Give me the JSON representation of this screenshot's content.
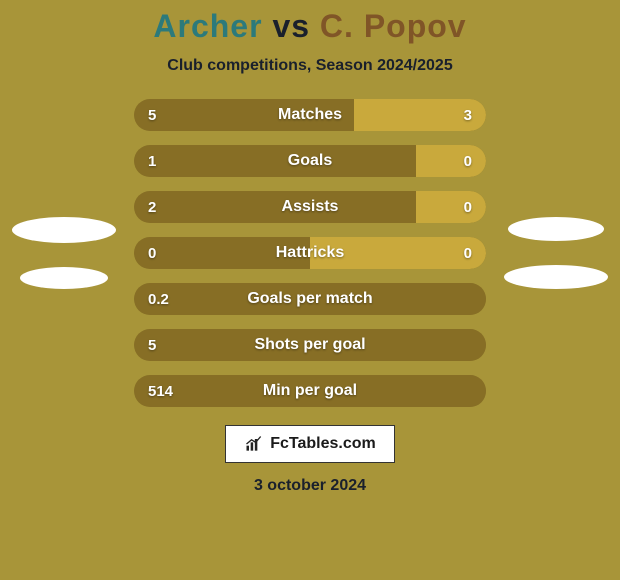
{
  "background_color": "#a89539",
  "title": {
    "player1": "Archer",
    "vs": "vs",
    "player2": "C. Popov",
    "player1_color": "#2c7a7b",
    "vs_color": "#1a202c",
    "player2_color": "#805527",
    "fontsize": 32
  },
  "subtitle": "Club competitions, Season 2024/2025",
  "stats": [
    {
      "label": "Matches",
      "left_val": "5",
      "right_val": "3",
      "left_pct": 62.5,
      "right_pct": 37.5
    },
    {
      "label": "Goals",
      "left_val": "1",
      "right_val": "0",
      "left_pct": 80,
      "right_pct": 20
    },
    {
      "label": "Assists",
      "left_val": "2",
      "right_val": "0",
      "left_pct": 80,
      "right_pct": 20
    },
    {
      "label": "Hattricks",
      "left_val": "0",
      "right_val": "0",
      "left_pct": 50,
      "right_pct": 50
    },
    {
      "label": "Goals per match",
      "left_val": "0.2",
      "right_val": "",
      "left_pct": 100,
      "right_pct": 0
    },
    {
      "label": "Shots per goal",
      "left_val": "5",
      "right_val": "",
      "left_pct": 100,
      "right_pct": 0
    },
    {
      "label": "Min per goal",
      "left_val": "514",
      "right_val": "",
      "left_pct": 100,
      "right_pct": 0
    }
  ],
  "bar_style": {
    "height": 32,
    "radius": 16,
    "left_fill": "#876e25",
    "right_fill": "#c9a93c",
    "track": "#8f7d2e",
    "text_color": "#ffffff",
    "fontsize": 16
  },
  "badge": {
    "text": "FcTables.com",
    "bg": "#ffffff",
    "border": "#333333"
  },
  "date": "3 october 2024"
}
